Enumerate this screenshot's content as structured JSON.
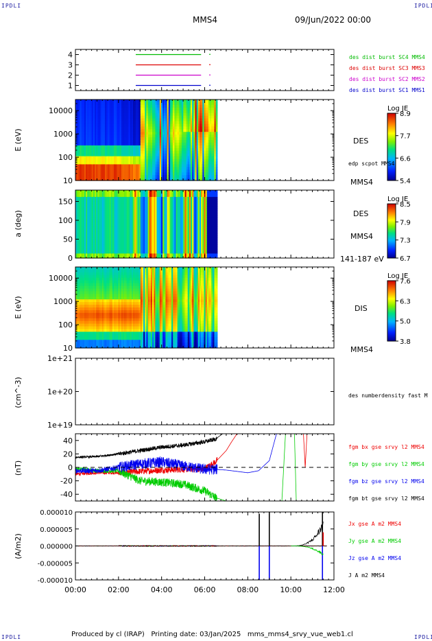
{
  "corner_labels": {
    "top_left": "IPDLI",
    "top_right": "IPDLI",
    "bottom_left": "IPDLI",
    "bottom_right": "IPDLI"
  },
  "header": {
    "spacecraft": "MMS4",
    "date": "09/Jun/2022 00:00"
  },
  "footer": "Produced by cl (IRAP)   Printing date: 03/Jan/2025   mms_mms4_srvy_vue_web1.cl",
  "colors": {
    "mms1": "#0000cc",
    "mms2": "#cc00cc",
    "mms3": "#dd0000",
    "mms4": "#00bb00",
    "bx": "#ee0000",
    "by": "#00cc00",
    "bz": "#0000ee",
    "bt": "#000000"
  },
  "chart_data": [
    {
      "type": "line",
      "panel": "burst availability",
      "y_ticks": [
        "4",
        "3",
        "2",
        "1"
      ],
      "ylim": [
        0.5,
        4.5
      ],
      "series": [
        {
          "name": "des dist burst SC1 MMS1",
          "color": "#0000cc",
          "level": 1,
          "x_start": "02:48",
          "x_end": "05:50"
        },
        {
          "name": "des dist burst SC2 MMS2",
          "color": "#cc00cc",
          "level": 2,
          "x_start": "02:48",
          "x_end": "05:50"
        },
        {
          "name": "des dist burst SC3 MMS3",
          "color": "#dd0000",
          "level": 3,
          "x_start": "02:48",
          "x_end": "05:50"
        },
        {
          "name": "des dist burst SC4 MMS4",
          "color": "#00bb00",
          "level": 4,
          "x_start": "02:48",
          "x_end": "05:50"
        }
      ]
    },
    {
      "type": "heatmap",
      "panel": "DES energy spectrogram",
      "ylabel": "E (eV)",
      "y_ticks": [
        "10000",
        "1000",
        "100",
        "10"
      ],
      "y_scale": "log",
      "ylim": [
        10,
        30000
      ],
      "data_extent_x": [
        "00:00",
        "06:35"
      ],
      "label": "DES",
      "sublabel": "edp scpot MMS4",
      "probe": "MMS4",
      "colorbar": {
        "title": "Log JE",
        "ticks": [
          "8.9",
          "7.7",
          "6.6",
          "5.4"
        ],
        "range": [
          5.4,
          8.9
        ]
      }
    },
    {
      "type": "heatmap",
      "panel": "DES pitch angle distribution",
      "ylabel": "a (deg)",
      "y_ticks": [
        "150",
        "100",
        "50",
        "0"
      ],
      "ylim": [
        0,
        180
      ],
      "data_extent_x": [
        "00:00",
        "06:35"
      ],
      "label": "DES",
      "probe": "MMS4",
      "energy_range": "141-187 eV",
      "colorbar": {
        "title": "Log JE",
        "ticks": [
          "8.5",
          "7.9",
          "7.3",
          "6.7"
        ],
        "range": [
          6.7,
          8.5
        ]
      }
    },
    {
      "type": "heatmap",
      "panel": "DIS energy spectrogram",
      "ylabel": "E (eV)",
      "y_ticks": [
        "10000",
        "1000",
        "100",
        "10"
      ],
      "y_scale": "log",
      "ylim": [
        10,
        30000
      ],
      "data_extent_x": [
        "00:00",
        "06:35"
      ],
      "label": "DIS",
      "probe": "MMS4",
      "colorbar": {
        "title": "Log JE",
        "ticks": [
          "7.6",
          "6.3",
          "5.0",
          "3.8"
        ],
        "range": [
          3.8,
          7.6
        ]
      }
    },
    {
      "type": "line",
      "panel": "density",
      "ylabel": "(cm^-3)",
      "y_ticks": [
        "1e+21",
        "1e+20",
        "1e+19"
      ],
      "y_scale": "log",
      "ylim": [
        1e+19,
        1e+21
      ],
      "series": [
        {
          "name": "des numberdensity fast M",
          "values": []
        }
      ]
    },
    {
      "type": "line",
      "panel": "magnetic field",
      "ylabel": "(nT)",
      "y_ticks": [
        "40",
        "20",
        "0",
        "-20",
        "-40"
      ],
      "ylim": [
        -50,
        50
      ],
      "series": [
        {
          "name": "fgm bx gse srvy l2 MMS4",
          "color": "#ee0000",
          "x": [
            "00:00",
            "01:00",
            "02:00",
            "03:00",
            "04:00",
            "05:00",
            "06:00",
            "06:30",
            "07:00",
            "07:15",
            "07:30",
            "10:35",
            "10:40",
            "10:45"
          ],
          "values": [
            -10,
            -8,
            -8,
            -6,
            -4,
            -3,
            -2,
            8,
            25,
            38,
            50,
            50,
            0,
            50
          ]
        },
        {
          "name": "fgm by gse srvy l2 MMS4",
          "color": "#00cc00",
          "x": [
            "00:00",
            "01:00",
            "02:00",
            "03:00",
            "04:00",
            "05:00",
            "06:00",
            "06:30",
            "07:00",
            "09:35",
            "09:45",
            "10:10",
            "10:15"
          ],
          "values": [
            -2,
            -5,
            -5,
            -20,
            -22,
            -25,
            -35,
            -45,
            -50,
            -50,
            50,
            50,
            -50
          ]
        },
        {
          "name": "fgm bz gse srvy l2 MMS4",
          "color": "#0000ee",
          "x": [
            "00:00",
            "01:00",
            "02:00",
            "03:00",
            "04:00",
            "05:00",
            "06:00",
            "06:30",
            "07:00",
            "08:00",
            "08:30",
            "09:00",
            "09:10",
            "09:20"
          ],
          "values": [
            -5,
            -5,
            0,
            5,
            8,
            2,
            -3,
            -3,
            -4,
            -8,
            -5,
            10,
            30,
            50
          ]
        },
        {
          "name": "fgm bt gse srvy l2 MMS4",
          "color": "#000000",
          "x": [
            "00:00",
            "01:00",
            "02:00",
            "03:00",
            "04:00",
            "05:00",
            "06:00",
            "06:30",
            "06:50"
          ],
          "values": [
            15,
            16,
            20,
            25,
            30,
            33,
            38,
            42,
            50
          ]
        }
      ]
    },
    {
      "type": "line",
      "panel": "current density",
      "ylabel": "(A/m2)",
      "y_ticks": [
        "0.000010",
        "0.000005",
        "0.000000",
        "-0.000005",
        "-0.000010"
      ],
      "ylim": [
        -1e-05,
        1e-05
      ],
      "series": [
        {
          "name": "Jx gse A m2 MMS4",
          "color": "#ee0000",
          "values": []
        },
        {
          "name": "Jy gse A m2 MMS4",
          "color": "#00cc00",
          "values": []
        },
        {
          "name": "Jz gse A m2 MMS4",
          "color": "#0000ee",
          "values": []
        },
        {
          "name": "J A m2 MMS4",
          "color": "#000000",
          "values": []
        }
      ]
    }
  ],
  "x_axis": {
    "ticks": [
      "00:00",
      "02:00",
      "04:00",
      "06:00",
      "08:00",
      "10:00",
      "12:00"
    ],
    "range": [
      "00:00",
      "12:00"
    ]
  }
}
